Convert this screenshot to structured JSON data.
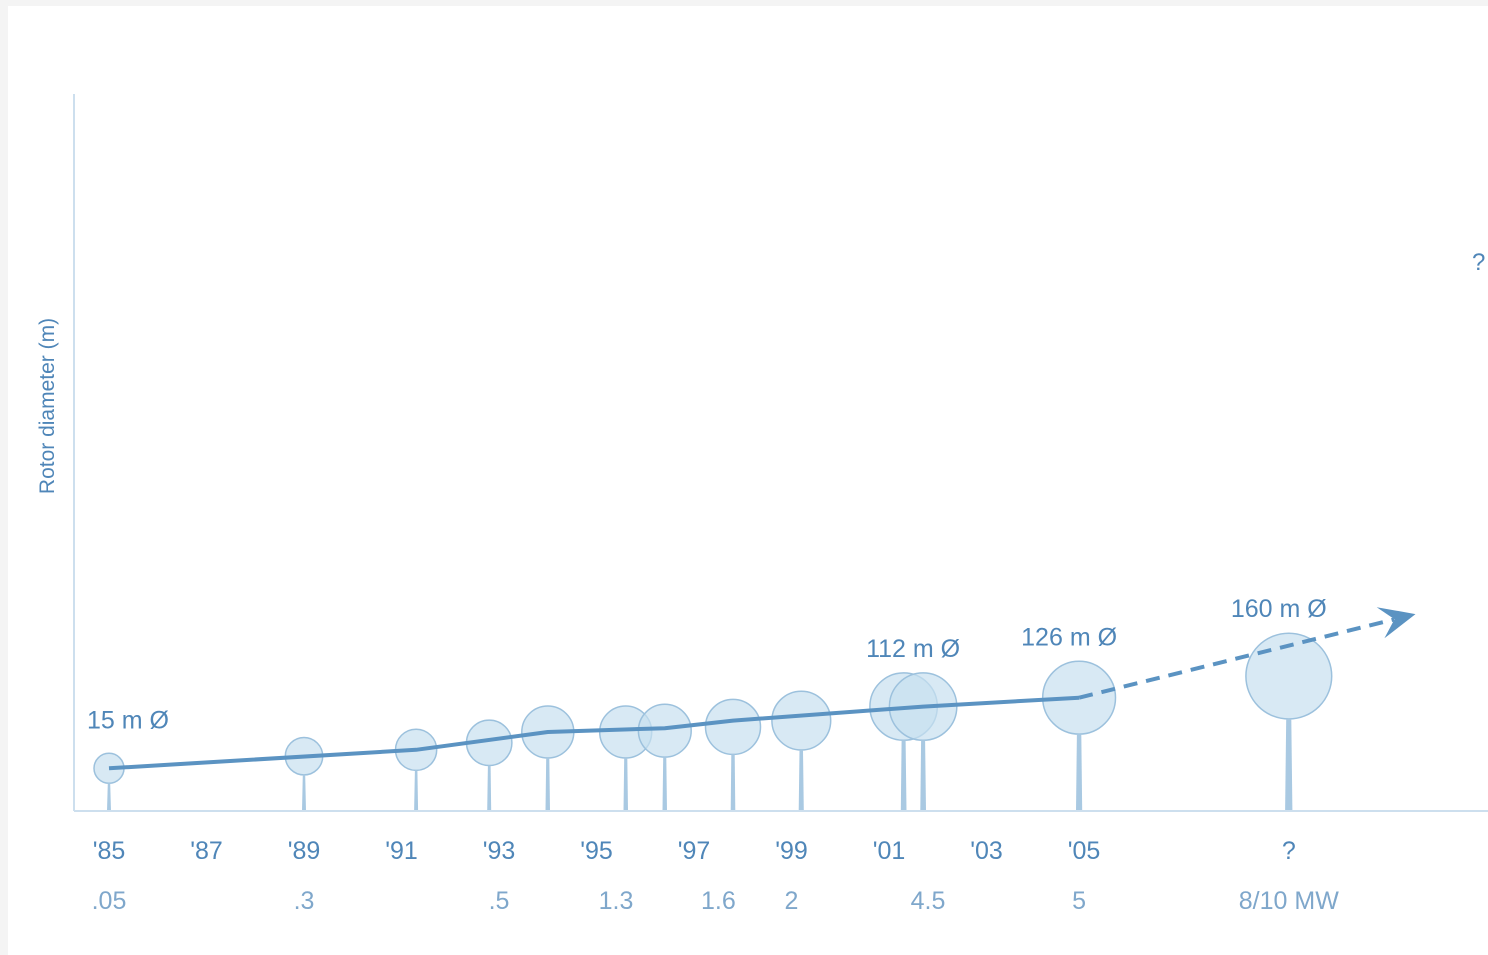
{
  "chart_data": {
    "type": "bubble-timeline",
    "ylabel": "Rotor diameter (m)",
    "year_ticks": [
      "'85",
      "'87",
      "'89",
      "'91",
      "'93",
      "'95",
      "'97",
      "'99",
      "'01",
      "'03",
      "'05",
      "?"
    ],
    "power_labels": [
      ".05",
      ".3",
      ".5",
      "1.3",
      "1.6",
      "2",
      "4.5",
      "5",
      "8/10 MW"
    ],
    "future_label": "?",
    "annotations": [
      {
        "text": "15 m Ø",
        "turbine_index": 0
      },
      {
        "text": "112 m Ø",
        "turbine_index": 10
      },
      {
        "text": "126 m Ø",
        "turbine_index": 11
      },
      {
        "text": "160 m Ø",
        "turbine_index": 12
      }
    ],
    "turbines": [
      {
        "year": 1985.0,
        "diameter_m": 15
      },
      {
        "year": 1989.0,
        "diameter_m": 34
      },
      {
        "year": 1991.3,
        "diameter_m": 44
      },
      {
        "year": 1992.8,
        "diameter_m": 55
      },
      {
        "year": 1994.0,
        "diameter_m": 72
      },
      {
        "year": 1995.6,
        "diameter_m": 72
      },
      {
        "year": 1996.4,
        "diameter_m": 74
      },
      {
        "year": 1997.8,
        "diameter_m": 80
      },
      {
        "year": 1999.2,
        "diameter_m": 90
      },
      {
        "year": 2001.3,
        "diameter_m": 112
      },
      {
        "year": 2001.7,
        "diameter_m": 112
      },
      {
        "year": 2004.9,
        "diameter_m": 126
      },
      {
        "year": 2009.2,
        "diameter_m": 160
      }
    ],
    "trend_solid": [
      {
        "year": 1985.0,
        "diameter_m": 15
      },
      {
        "year": 1991.3,
        "diameter_m": 44
      },
      {
        "year": 1994.0,
        "diameter_m": 72
      },
      {
        "year": 1996.4,
        "diameter_m": 78
      },
      {
        "year": 1997.8,
        "diameter_m": 90
      },
      {
        "year": 2001.7,
        "diameter_m": 112
      },
      {
        "year": 2004.9,
        "diameter_m": 126
      }
    ],
    "trend_projected": [
      {
        "year": 2004.9,
        "diameter_m": 126
      },
      {
        "year": 2011.8,
        "diameter_m": 160
      }
    ],
    "colors": {
      "fill": "#c8dff0",
      "stroke": "#9cc1dd",
      "tower": "#a9c9e2",
      "line": "#5b93c2",
      "text": "#4f86b8",
      "axis": "#cddfee"
    }
  }
}
